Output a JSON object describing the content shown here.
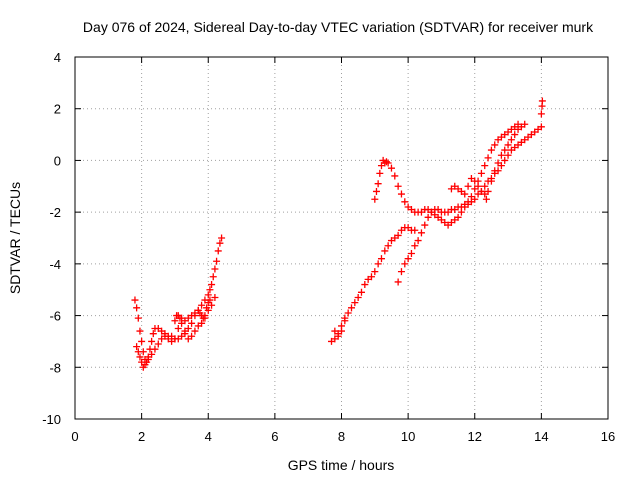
{
  "chart_data": {
    "type": "scatter",
    "title": "Day 076 of 2024, Sidereal Day-to-day VTEC variation (SDTVAR) for receiver murk",
    "xlabel": "GPS time / hours",
    "ylabel": "SDTVAR / TECUs",
    "xlim": [
      0,
      16
    ],
    "ylim": [
      -10,
      4
    ],
    "xticks": [
      "0",
      "2",
      "4",
      "6",
      "8",
      "10",
      "12",
      "14",
      "16"
    ],
    "yticks": [
      "-10",
      "-8",
      "-6",
      "-4",
      "-2",
      "0",
      "2",
      "4"
    ],
    "grid": true,
    "marker": "+",
    "color": "#ff0000",
    "series": [
      {
        "points": [
          [
            1.8,
            -5.4
          ],
          [
            1.85,
            -5.7
          ],
          [
            1.9,
            -6.1
          ],
          [
            1.95,
            -6.6
          ],
          [
            2.0,
            -7.0
          ],
          [
            2.05,
            -7.4
          ],
          [
            2.1,
            -7.7
          ],
          [
            2.15,
            -7.8
          ],
          [
            2.2,
            -7.6
          ],
          [
            2.25,
            -7.3
          ],
          [
            2.3,
            -7.0
          ],
          [
            2.35,
            -6.7
          ],
          [
            2.4,
            -6.5
          ],
          [
            2.5,
            -6.5
          ],
          [
            2.6,
            -6.6
          ],
          [
            2.7,
            -6.7
          ],
          [
            2.8,
            -6.8
          ],
          [
            2.9,
            -6.8
          ],
          [
            3.0,
            -6.9
          ],
          [
            3.1,
            -6.9
          ],
          [
            3.2,
            -6.8
          ],
          [
            3.3,
            -6.7
          ],
          [
            3.4,
            -6.5
          ],
          [
            3.5,
            -6.3
          ],
          [
            3.6,
            -6.0
          ],
          [
            3.7,
            -5.8
          ],
          [
            3.8,
            -5.6
          ],
          [
            3.9,
            -5.4
          ],
          [
            4.0,
            -5.2
          ],
          [
            4.05,
            -5.0
          ],
          [
            4.1,
            -4.8
          ],
          [
            4.15,
            -4.5
          ],
          [
            4.2,
            -4.2
          ],
          [
            4.25,
            -3.9
          ],
          [
            4.3,
            -3.5
          ],
          [
            4.35,
            -3.2
          ],
          [
            4.4,
            -3.0
          ],
          [
            1.85,
            -7.2
          ],
          [
            1.9,
            -7.4
          ],
          [
            1.95,
            -7.6
          ],
          [
            2.0,
            -7.8
          ],
          [
            2.05,
            -8.0
          ],
          [
            2.1,
            -7.9
          ],
          [
            2.2,
            -7.7
          ],
          [
            2.3,
            -7.5
          ],
          [
            2.4,
            -7.3
          ],
          [
            2.5,
            -7.1
          ],
          [
            2.6,
            -6.9
          ],
          [
            2.7,
            -6.8
          ],
          [
            2.8,
            -6.9
          ],
          [
            2.9,
            -7.0
          ],
          [
            3.0,
            -6.9
          ],
          [
            3.1,
            -6.5
          ],
          [
            3.2,
            -6.3
          ],
          [
            3.3,
            -6.2
          ],
          [
            3.4,
            -6.1
          ],
          [
            3.5,
            -6.0
          ],
          [
            3.6,
            -5.9
          ],
          [
            3.7,
            -5.8
          ],
          [
            3.75,
            -5.9
          ],
          [
            3.8,
            -6.0
          ],
          [
            3.85,
            -6.1
          ],
          [
            3.9,
            -6.0
          ],
          [
            3.95,
            -5.7
          ],
          [
            4.0,
            -5.5
          ],
          [
            4.05,
            -5.4
          ],
          [
            3.0,
            -6.2
          ],
          [
            3.05,
            -6.0
          ],
          [
            3.1,
            -6.0
          ],
          [
            3.15,
            -6.1
          ],
          [
            3.2,
            -6.1
          ],
          [
            3.3,
            -6.6
          ],
          [
            3.4,
            -6.9
          ],
          [
            3.5,
            -6.8
          ],
          [
            3.6,
            -6.6
          ],
          [
            3.7,
            -6.4
          ],
          [
            3.8,
            -6.3
          ],
          [
            3.9,
            -6.1
          ],
          [
            4.0,
            -5.8
          ],
          [
            4.1,
            -5.6
          ],
          [
            4.2,
            -5.3
          ]
        ]
      },
      {
        "points": [
          [
            7.7,
            -7.0
          ],
          [
            7.8,
            -6.9
          ],
          [
            7.9,
            -6.7
          ],
          [
            8.0,
            -6.4
          ],
          [
            8.1,
            -6.1
          ],
          [
            8.2,
            -5.9
          ],
          [
            8.3,
            -5.7
          ],
          [
            8.4,
            -5.5
          ],
          [
            8.5,
            -5.3
          ],
          [
            8.6,
            -5.1
          ],
          [
            8.7,
            -4.8
          ],
          [
            8.8,
            -4.6
          ],
          [
            8.9,
            -4.5
          ],
          [
            9.0,
            -4.3
          ],
          [
            9.1,
            -4.0
          ],
          [
            9.2,
            -3.8
          ],
          [
            9.3,
            -3.5
          ],
          [
            9.4,
            -3.3
          ],
          [
            9.5,
            -3.1
          ],
          [
            9.6,
            -3.0
          ],
          [
            9.7,
            -2.9
          ],
          [
            9.8,
            -2.7
          ],
          [
            9.9,
            -2.6
          ],
          [
            10.0,
            -2.6
          ],
          [
            10.1,
            -2.7
          ],
          [
            10.2,
            -2.7
          ],
          [
            7.8,
            -6.6
          ],
          [
            7.9,
            -6.8
          ],
          [
            8.0,
            -6.6
          ],
          [
            8.1,
            -6.2
          ],
          [
            9.0,
            -1.5
          ],
          [
            9.05,
            -1.2
          ],
          [
            9.1,
            -0.9
          ],
          [
            9.15,
            -0.5
          ],
          [
            9.2,
            -0.2
          ],
          [
            9.25,
            0.0
          ],
          [
            9.3,
            -0.1
          ],
          [
            9.35,
            -0.05
          ],
          [
            9.4,
            -0.1
          ],
          [
            9.5,
            -0.3
          ],
          [
            9.6,
            -0.6
          ],
          [
            9.7,
            -1.0
          ],
          [
            9.8,
            -1.3
          ],
          [
            9.9,
            -1.6
          ],
          [
            10.0,
            -1.8
          ],
          [
            10.1,
            -1.9
          ],
          [
            10.2,
            -2.0
          ],
          [
            10.3,
            -2.0
          ],
          [
            10.4,
            -2.0
          ],
          [
            10.5,
            -1.9
          ],
          [
            10.6,
            -1.9
          ],
          [
            10.7,
            -2.0
          ],
          [
            10.8,
            -2.1
          ],
          [
            10.9,
            -2.2
          ],
          [
            11.0,
            -2.3
          ],
          [
            11.1,
            -2.4
          ],
          [
            11.2,
            -2.5
          ],
          [
            11.3,
            -2.4
          ],
          [
            11.4,
            -2.3
          ],
          [
            11.5,
            -2.2
          ],
          [
            11.6,
            -2.0
          ],
          [
            11.7,
            -1.8
          ],
          [
            11.8,
            -1.6
          ],
          [
            11.9,
            -1.4
          ],
          [
            12.0,
            -1.1
          ],
          [
            12.1,
            -0.8
          ],
          [
            12.2,
            -0.5
          ],
          [
            12.3,
            -0.2
          ],
          [
            12.4,
            0.1
          ],
          [
            12.5,
            0.4
          ],
          [
            12.6,
            0.6
          ],
          [
            12.7,
            0.8
          ],
          [
            12.8,
            0.9
          ],
          [
            12.9,
            1.0
          ],
          [
            13.0,
            1.1
          ],
          [
            13.1,
            1.2
          ],
          [
            13.2,
            1.3
          ],
          [
            13.3,
            1.4
          ],
          [
            9.7,
            -4.7
          ],
          [
            9.8,
            -4.3
          ],
          [
            9.9,
            -4.0
          ],
          [
            10.0,
            -3.8
          ],
          [
            10.1,
            -3.6
          ],
          [
            10.2,
            -3.3
          ],
          [
            10.3,
            -3.1
          ],
          [
            10.4,
            -2.8
          ],
          [
            10.5,
            -2.5
          ],
          [
            10.6,
            -2.2
          ],
          [
            10.7,
            -2.0
          ],
          [
            10.8,
            -1.9
          ],
          [
            10.9,
            -1.9
          ],
          [
            11.0,
            -2.0
          ],
          [
            11.1,
            -2.0
          ],
          [
            11.2,
            -2.0
          ],
          [
            11.3,
            -1.9
          ],
          [
            11.4,
            -1.9
          ],
          [
            11.5,
            -1.8
          ],
          [
            11.6,
            -1.8
          ],
          [
            11.7,
            -1.7
          ],
          [
            11.8,
            -1.7
          ],
          [
            11.9,
            -1.6
          ],
          [
            12.0,
            -1.5
          ],
          [
            12.1,
            -1.3
          ],
          [
            12.2,
            -1.2
          ],
          [
            12.3,
            -1.0
          ],
          [
            12.4,
            -0.8
          ],
          [
            12.5,
            -0.7
          ],
          [
            12.6,
            -0.5
          ],
          [
            12.7,
            -0.4
          ],
          [
            12.8,
            -0.2
          ],
          [
            12.9,
            0.0
          ],
          [
            13.0,
            0.2
          ],
          [
            13.1,
            0.4
          ],
          [
            13.2,
            0.5
          ],
          [
            13.3,
            0.6
          ],
          [
            13.4,
            0.7
          ],
          [
            13.5,
            0.8
          ],
          [
            13.6,
            0.9
          ],
          [
            13.7,
            1.0
          ],
          [
            13.8,
            1.1
          ],
          [
            13.9,
            1.2
          ],
          [
            14.0,
            1.3
          ],
          [
            14.0,
            1.8
          ],
          [
            14.02,
            2.1
          ],
          [
            14.03,
            2.3
          ],
          [
            11.3,
            -1.1
          ],
          [
            11.4,
            -1.0
          ],
          [
            11.5,
            -1.1
          ],
          [
            11.6,
            -1.2
          ],
          [
            11.7,
            -1.3
          ],
          [
            11.8,
            -1.0
          ],
          [
            11.9,
            -0.7
          ],
          [
            12.0,
            -0.8
          ],
          [
            12.1,
            -1.0
          ],
          [
            12.2,
            -1.2
          ],
          [
            12.3,
            -1.3
          ],
          [
            12.35,
            -1.5
          ],
          [
            12.4,
            -1.2
          ],
          [
            12.5,
            -0.8
          ],
          [
            12.6,
            -0.4
          ],
          [
            12.7,
            -0.1
          ],
          [
            12.8,
            0.2
          ],
          [
            12.9,
            0.4
          ],
          [
            13.0,
            0.6
          ],
          [
            13.1,
            0.8
          ],
          [
            13.2,
            1.0
          ],
          [
            13.3,
            1.2
          ],
          [
            13.4,
            1.3
          ],
          [
            13.5,
            1.4
          ]
        ]
      }
    ]
  }
}
